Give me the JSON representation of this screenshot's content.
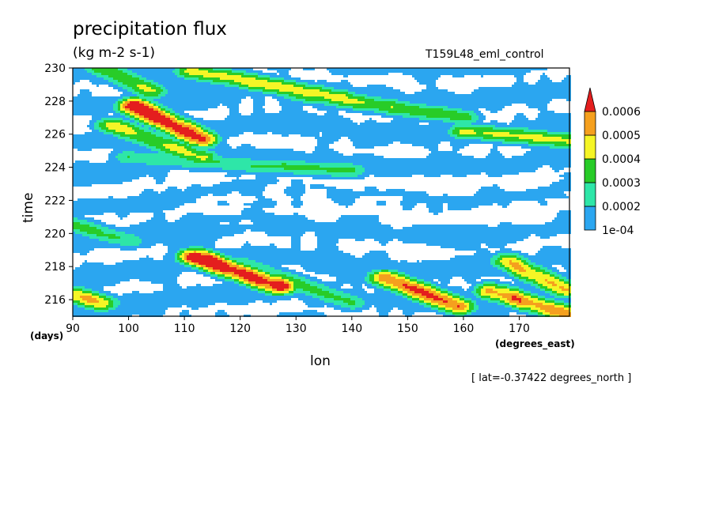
{
  "chart_data": {
    "type": "heatmap",
    "title": "precipitation flux",
    "units": "(kg m-2 s-1)",
    "run_name": "T159L48_eml_control",
    "xlabel": "lon",
    "x_unit": "(degrees_east)",
    "ylabel": "time",
    "y_unit": "(days)",
    "annotation": "[ lat=-0.37422 degrees_north ]",
    "xlim": [
      90,
      179
    ],
    "ylim": [
      215,
      230
    ],
    "x_ticks": [
      "90",
      "100",
      "110",
      "120",
      "130",
      "140",
      "150",
      "160",
      "170"
    ],
    "x_tick_values": [
      90,
      100,
      110,
      120,
      130,
      140,
      150,
      160,
      170
    ],
    "y_ticks": [
      "216",
      "218",
      "220",
      "222",
      "224",
      "226",
      "228",
      "230"
    ],
    "y_tick_values": [
      216,
      218,
      220,
      222,
      224,
      226,
      228,
      230
    ],
    "colorbar": {
      "levels": [
        "1e-04",
        "0.0002",
        "0.0003",
        "0.0004",
        "0.0005",
        "0.0006"
      ],
      "colors": [
        "#2ba6f0",
        "#2ee6a8",
        "#28cc28",
        "#f5f526",
        "#f5a01e",
        "#e41e1e"
      ]
    },
    "features": [
      {
        "lon": [
          101,
          113
        ],
        "time": [
          227.7,
          225.7
        ],
        "peak": 0.0007
      },
      {
        "lon": [
          97,
          113
        ],
        "time": [
          226.5,
          224.6
        ],
        "peak": 0.00045
      },
      {
        "lon": [
          112,
          127
        ],
        "time": [
          218.6,
          216.8
        ],
        "peak": 0.0007
      },
      {
        "lon": [
          120,
          140
        ],
        "time": [
          218.2,
          215.8
        ],
        "peak": 0.00032
      },
      {
        "lon": [
          111,
          138
        ],
        "time": [
          229.8,
          228.2
        ],
        "peak": 0.00045
      },
      {
        "lon": [
          146,
          159
        ],
        "time": [
          217.3,
          215.6
        ],
        "peak": 0.00062
      },
      {
        "lon": [
          165,
          179
        ],
        "time": [
          216.5,
          215.1
        ],
        "peak": 0.00058
      },
      {
        "lon": [
          168,
          178
        ],
        "time": [
          218.3,
          216.6
        ],
        "peak": 0.0005
      },
      {
        "lon": [
          160,
          179
        ],
        "time": [
          226.2,
          225.6
        ],
        "peak": 0.0004
      },
      {
        "lon": [
          130,
          160
        ],
        "time": [
          228.5,
          227
        ],
        "peak": 0.00038
      },
      {
        "lon": [
          90,
          95
        ],
        "time": [
          216.3,
          215.8
        ],
        "peak": 0.0005
      },
      {
        "lon": [
          95,
          104
        ],
        "time": [
          230,
          228.6
        ],
        "peak": 0.00038
      },
      {
        "lon": [
          90,
          100
        ],
        "time": [
          220.5,
          219.6
        ],
        "peak": 0.00033
      },
      {
        "lon": [
          100,
          140
        ],
        "time": [
          224.6,
          223.8
        ],
        "peak": 0.0003
      }
    ]
  }
}
